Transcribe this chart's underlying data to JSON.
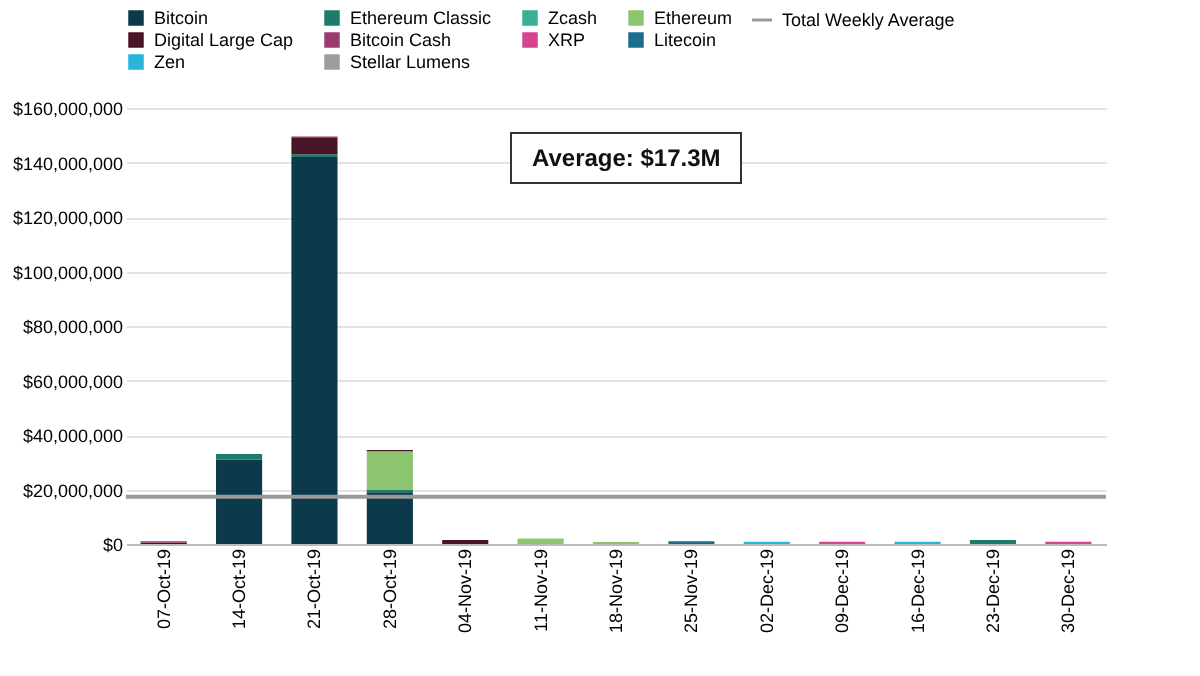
{
  "chart_data": {
    "type": "bar",
    "stacked": true,
    "categories": [
      "07-Oct-19",
      "14-Oct-19",
      "21-Oct-19",
      "28-Oct-19",
      "04-Nov-19",
      "11-Nov-19",
      "18-Nov-19",
      "25-Nov-19",
      "02-Dec-19",
      "09-Dec-19",
      "16-Dec-19",
      "23-Dec-19",
      "30-Dec-19"
    ],
    "series": [
      {
        "name": "Bitcoin",
        "color": "#0d3a4a",
        "values": [
          null,
          31000000,
          142000000,
          19000000,
          null,
          null,
          null,
          null,
          null,
          null,
          null,
          null,
          null
        ]
      },
      {
        "name": "Ethereum Classic",
        "color": "#1e7a6a",
        "values": [
          null,
          2000000,
          1000000,
          1000000,
          null,
          null,
          null,
          null,
          null,
          null,
          null,
          1500000,
          null
        ]
      },
      {
        "name": "Zcash",
        "color": "#3aae96",
        "values": [
          null,
          null,
          null,
          null,
          null,
          null,
          null,
          null,
          null,
          null,
          null,
          null,
          null
        ]
      },
      {
        "name": "Ethereum",
        "color": "#8dc46e",
        "values": [
          null,
          null,
          null,
          14000000,
          null,
          2000000,
          700000,
          null,
          null,
          null,
          null,
          null,
          null
        ]
      },
      {
        "name": "Digital Large Cap",
        "color": "#4a1428",
        "values": [
          500000,
          null,
          6000000,
          500000,
          1500000,
          null,
          null,
          null,
          null,
          null,
          null,
          null,
          null
        ]
      },
      {
        "name": "Bitcoin Cash",
        "color": "#9b3a6e",
        "values": [
          500000,
          null,
          500000,
          null,
          null,
          null,
          null,
          null,
          null,
          null,
          null,
          null,
          null
        ]
      },
      {
        "name": "XRP",
        "color": "#d6448e",
        "values": [
          null,
          null,
          null,
          null,
          null,
          null,
          null,
          null,
          null,
          800000,
          null,
          null,
          800000
        ]
      },
      {
        "name": "Litecoin",
        "color": "#1a6e8c",
        "values": [
          null,
          null,
          null,
          null,
          null,
          null,
          null,
          1000000,
          null,
          null,
          null,
          null,
          null
        ]
      },
      {
        "name": "Zen",
        "color": "#29b4dc",
        "values": [
          null,
          null,
          null,
          null,
          null,
          null,
          null,
          null,
          800000,
          null,
          800000,
          null,
          null
        ]
      },
      {
        "name": "Stellar Lumens",
        "color": "#9e9e9e",
        "values": [
          null,
          null,
          null,
          null,
          null,
          null,
          null,
          null,
          null,
          null,
          null,
          null,
          null
        ]
      }
    ],
    "ylim": [
      0,
      160000000
    ],
    "yticks": [
      {
        "value": 0,
        "label": "$0"
      },
      {
        "value": 20000000,
        "label": "$20,000,000"
      },
      {
        "value": 40000000,
        "label": "$40,000,000"
      },
      {
        "value": 60000000,
        "label": "$60,000,000"
      },
      {
        "value": 80000000,
        "label": "$80,000,000"
      },
      {
        "value": 100000000,
        "label": "$100,000,000"
      },
      {
        "value": 120000000,
        "label": "$120,000,000"
      },
      {
        "value": 140000000,
        "label": "$140,000,000"
      },
      {
        "value": 160000000,
        "label": "$160,000,000"
      }
    ],
    "ref_lines": [
      {
        "axis": "y",
        "value": 17300000,
        "label": "Total Weekly Average",
        "color": "#999999"
      }
    ],
    "annotations": [
      "Average: $17.3M"
    ],
    "grid": "y",
    "legend": "top"
  }
}
